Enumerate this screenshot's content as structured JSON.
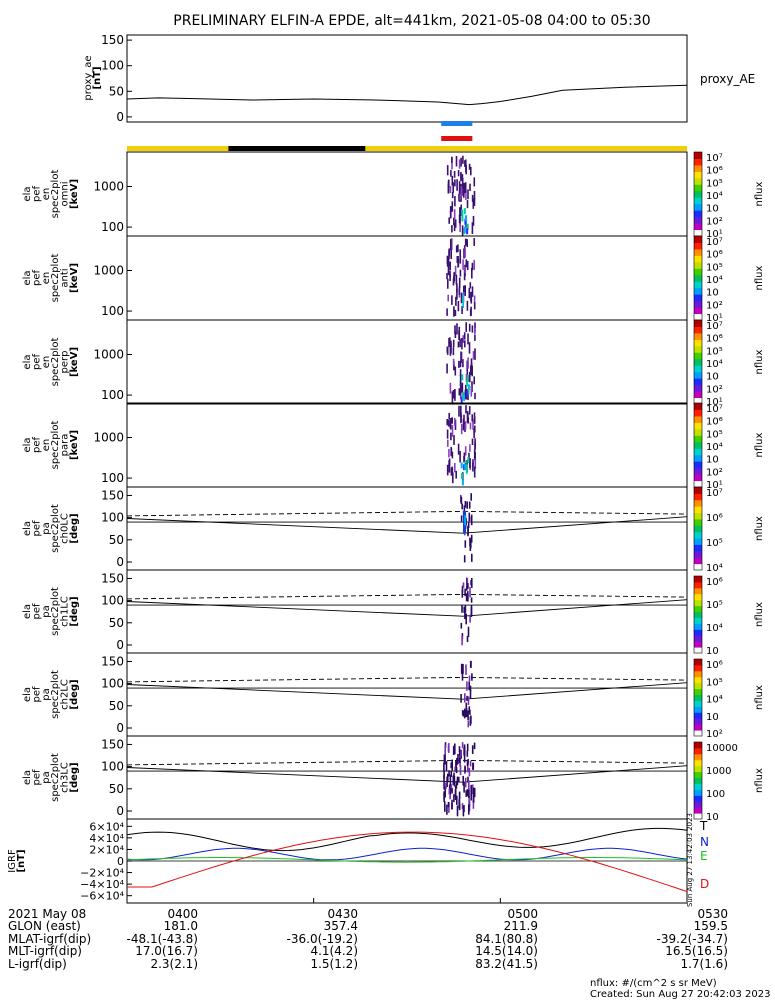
{
  "title": "PRELIMINARY ELFIN-A EPDE, alt=441km, 2021-05-08 04:00 to 05:30",
  "time_range_min": [
    0,
    90
  ],
  "ae_panel": {
    "ylabel": "proxy_ae [nT]",
    "legend": "proxy_AE",
    "yticks": [
      "0",
      "50",
      "100",
      "150"
    ],
    "ylim": [
      -10,
      160
    ],
    "series": {
      "x": [
        0,
        5,
        10,
        20,
        30,
        40,
        50,
        55,
        57,
        60,
        65,
        70,
        80,
        90
      ],
      "y": [
        35,
        37,
        36,
        33,
        35,
        33,
        29,
        24,
        26,
        30,
        40,
        52,
        58,
        62
      ]
    }
  },
  "marker_bars": [
    {
      "color": "#1e7fe6",
      "x0": 50.5,
      "x1": 55.5
    },
    {
      "color": "#e01010",
      "x0": 50.5,
      "x1": 55.5
    }
  ],
  "sunlight_bar": {
    "yellow": "#f0d000",
    "black_segment": [
      16.3,
      38.3
    ]
  },
  "colorbar_label": "nflux",
  "spectrograms": [
    {
      "ylabel": [
        "ela",
        "pef",
        "en",
        "spec2plot",
        "omni",
        "[keV]"
      ],
      "yticks": [
        "100",
        "1000"
      ],
      "cbar": [
        "10⁷",
        "10⁶",
        "10⁵",
        "10⁴",
        "10⁳",
        "10²",
        "10¹"
      ]
    },
    {
      "ylabel": [
        "ela",
        "pef",
        "en",
        "spec2plot",
        "anti",
        "[keV]"
      ],
      "yticks": [
        "100",
        "1000"
      ],
      "cbar": [
        "10⁷",
        "10⁶",
        "10⁵",
        "10⁴",
        "10⁳",
        "10²",
        "10¹"
      ]
    },
    {
      "ylabel": [
        "ela",
        "pef",
        "en",
        "spec2plot",
        "perp",
        "[keV]"
      ],
      "yticks": [
        "100",
        "1000"
      ],
      "cbar": [
        "10⁷",
        "10⁶",
        "10⁵",
        "10⁴",
        "10⁳",
        "10²",
        "10¹"
      ]
    },
    {
      "ylabel": [
        "ela",
        "pef",
        "en",
        "spec2plot",
        "para",
        "[keV]"
      ],
      "yticks": [
        "100",
        "1000"
      ],
      "cbar": [
        "10⁷",
        "10⁶",
        "10⁵",
        "10⁴",
        "10⁳",
        "10²",
        "10¹"
      ]
    }
  ],
  "pitch_panels": [
    {
      "ylabel": [
        "ela",
        "pef",
        "pa",
        "spec2plot",
        "ch0LC",
        "[deg]"
      ],
      "yticks": [
        "0",
        "50",
        "100",
        "150"
      ],
      "cbar": [
        "10⁷",
        "10⁶",
        "10⁵",
        "10⁴"
      ]
    },
    {
      "ylabel": [
        "ela",
        "pef",
        "pa",
        "spec2plot",
        "ch1LC",
        "[deg]"
      ],
      "yticks": [
        "0",
        "50",
        "100",
        "150"
      ],
      "cbar": [
        "10⁶",
        "10⁵",
        "10⁴",
        "10⁳"
      ]
    },
    {
      "ylabel": [
        "ela",
        "pef",
        "pa",
        "spec2plot",
        "ch2LC",
        "[deg]"
      ],
      "yticks": [
        "0",
        "50",
        "100",
        "150"
      ],
      "cbar": [
        "10⁶",
        "10⁵",
        "10⁴",
        "10⁳",
        "10²"
      ]
    },
    {
      "ylabel": [
        "ela",
        "pef",
        "pa",
        "spec2plot",
        "ch3LC",
        "[deg]"
      ],
      "yticks": [
        "0",
        "50",
        "100",
        "150"
      ],
      "cbar": [
        "10000",
        "1000",
        "100",
        "10"
      ]
    }
  ],
  "igrf_panel": {
    "ylabel": "IGRF [nT]",
    "yticks": [
      "6×10⁴",
      "4×10⁴",
      "2×10⁴",
      "0",
      "−2×10⁴",
      "−4×10⁴",
      "−6×10⁴"
    ],
    "legend": [
      {
        "label": "T",
        "color": "#000000"
      },
      {
        "label": "N",
        "color": "#1020d0"
      },
      {
        "label": "E",
        "color": "#20c020"
      },
      {
        "label": "D",
        "color": "#e01010"
      }
    ],
    "stamp": "Sun Aug 27 13:42:03 2023"
  },
  "footer": {
    "rows": [
      [
        "2021 May 08",
        "0400",
        "0430",
        "0500",
        "0530"
      ],
      [
        "GLON (east)",
        "181.0",
        "357.4",
        "211.9",
        "159.5"
      ],
      [
        "MLAT-igrf(dip)",
        "-48.1(-43.8)",
        "-36.0(-19.2)",
        "84.1(80.8)",
        "-39.2(-34.7)"
      ],
      [
        "MLT-igrf(dip)",
        "17.0(16.7)",
        "4.1(4.2)",
        "14.5(14.0)",
        "16.5(16.5)"
      ],
      [
        "L-igrf(dip)",
        "2.3(2.1)",
        "1.5(1.2)",
        "83.2(41.5)",
        "1.7(1.6)"
      ]
    ],
    "units_note": "nflux: #/(cm^2 s sr MeV)",
    "created": "Created: Sun Aug 27 20:42:03 2023"
  }
}
